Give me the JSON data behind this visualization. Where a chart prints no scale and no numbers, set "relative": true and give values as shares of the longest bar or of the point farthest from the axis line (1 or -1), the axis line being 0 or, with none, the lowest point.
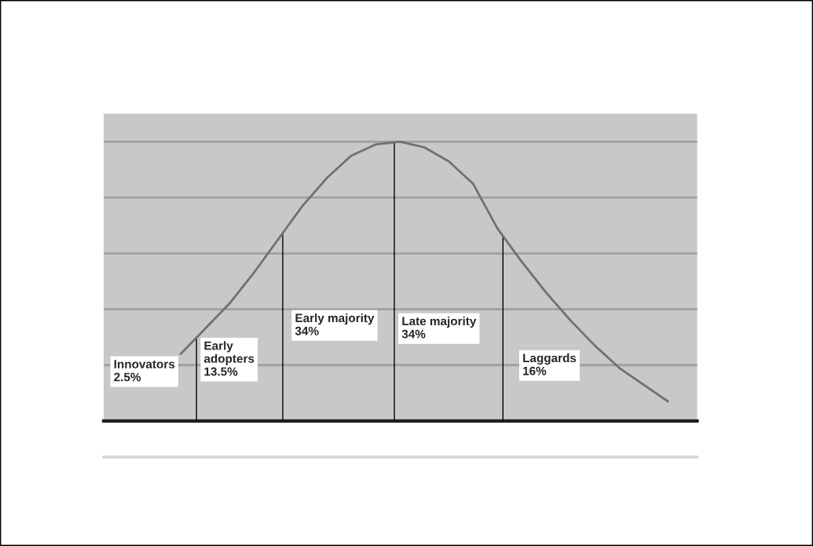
{
  "chart_data": {
    "type": "line",
    "relative": true,
    "color": "#707070",
    "categories": [
      null,
      null,
      null,
      null,
      null,
      null,
      null,
      null,
      null,
      null,
      null,
      null,
      null,
      null,
      null,
      null,
      null,
      null,
      null,
      null,
      null
    ],
    "values": [
      0.24,
      0.33,
      0.42,
      0.53,
      0.65,
      0.77,
      0.87,
      0.95,
      0.99,
      1.0,
      0.98,
      0.93,
      0.85,
      0.69,
      0.57,
      0.46,
      0.36,
      0.27,
      0.19,
      0.13,
      0.07
    ],
    "annotations": [
      "Innovators\n2.5%",
      "Early\nadopters\n13.5%",
      "Early majority\n34%",
      "Late majority\n34%",
      "Laggards\n16%"
    ],
    "grid": "y",
    "marker": "none",
    "line_style": "solid",
    "tick_labels": false
  }
}
